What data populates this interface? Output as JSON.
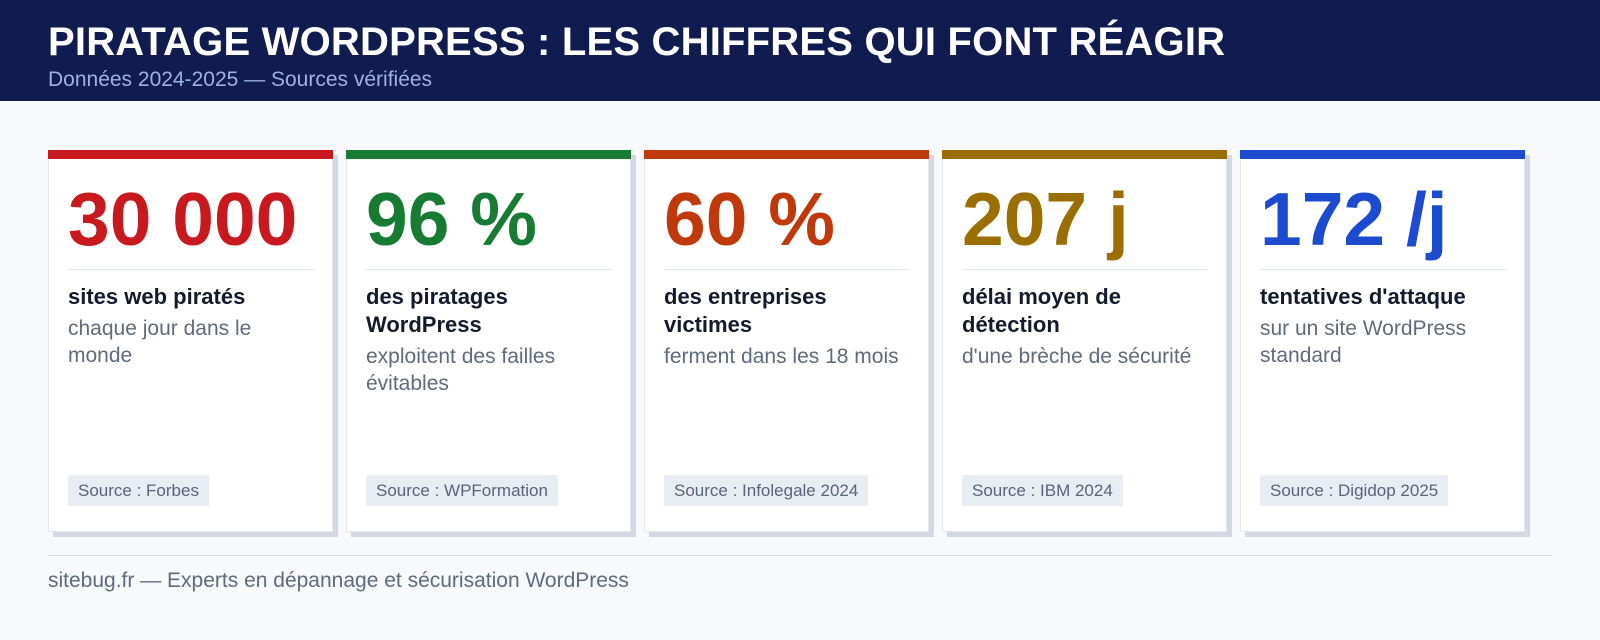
{
  "header": {
    "title": "PIRATAGE WORDPRESS : LES CHIFFRES QUI FONT RÉAGIR",
    "subtitle": "Données 2024-2025 — Sources vérifiées"
  },
  "cards": [
    {
      "value": "30 000",
      "label": "sites web piratés",
      "sub": "chaque jour dans le monde",
      "source": "Source : Forbes",
      "color": "#c8191e"
    },
    {
      "value": "96 %",
      "label": "des piratages WordPress",
      "sub": "exploitent des failles évitables",
      "source": "Source : WPFormation",
      "color": "#187b34"
    },
    {
      "value": "60 %",
      "label": "des entreprises victimes",
      "sub": "ferment dans les 18 mois",
      "source": "Source : Infolegale 2024",
      "color": "#c0390b"
    },
    {
      "value": "207 j",
      "label": "délai moyen de détection",
      "sub": "d'une brèche de sécurité",
      "source": "Source : IBM 2024",
      "color": "#9a6e00"
    },
    {
      "value": "172 /j",
      "label": "tentatives d'attaque",
      "sub": "sur un site WordPress standard",
      "source": "Source : Digidop 2025",
      "color": "#1d4bd0"
    }
  ],
  "footer": {
    "text": "sitebug.fr — Experts en dépannage et sécurisation WordPress"
  }
}
